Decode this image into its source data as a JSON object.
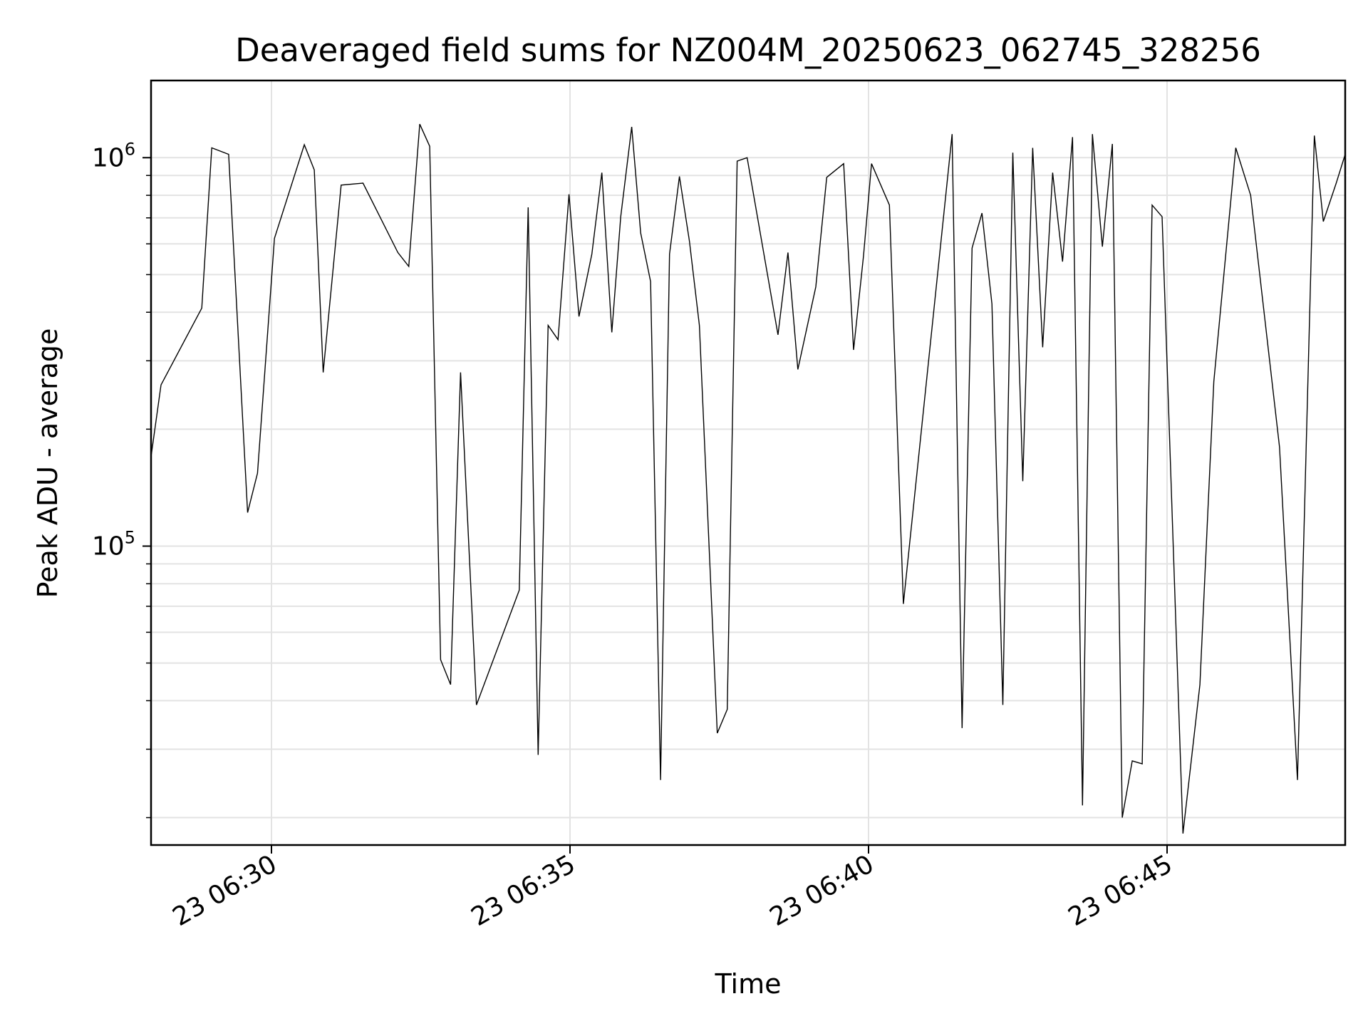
{
  "chart_data": {
    "type": "line",
    "title": "Deaveraged field sums for NZ004M_20250623_062745_328256",
    "xlabel": "Time",
    "ylabel": "Peak ADU - average",
    "yscale": "log",
    "grid": true,
    "line_color": "#000000",
    "grid_color": "#e3e3e3",
    "x_unit": "time of day on 2025-06-23 (HH:MM:SS)",
    "xlim": [
      "06:27:59",
      "06:47:59"
    ],
    "ylim": [
      17000,
      1580000
    ],
    "x_ticks": [
      {
        "value": "06:30:00",
        "label": "23 06:30"
      },
      {
        "value": "06:35:00",
        "label": "23 06:35"
      },
      {
        "value": "06:40:00",
        "label": "23 06:40"
      },
      {
        "value": "06:45:00",
        "label": "23 06:45"
      }
    ],
    "y_ticks": [
      {
        "value": 100000,
        "base": "10",
        "exp": "5"
      },
      {
        "value": 1000000,
        "base": "10",
        "exp": "6"
      }
    ],
    "series": [
      {
        "x": [
          "06:27:59",
          "06:28:09",
          "06:28:50",
          "06:29:00",
          "06:29:17",
          "06:29:36",
          "06:29:46",
          "06:30:03",
          "06:30:33",
          "06:30:43",
          "06:30:52",
          "06:31:10",
          "06:31:32",
          "06:32:07",
          "06:32:18",
          "06:32:29",
          "06:32:39",
          "06:32:50",
          "06:33:00",
          "06:33:10",
          "06:33:26",
          "06:34:09",
          "06:34:18",
          "06:34:28",
          "06:34:38",
          "06:34:48",
          "06:34:59",
          "06:35:09",
          "06:35:22",
          "06:35:32",
          "06:35:42",
          "06:35:51",
          "06:36:02",
          "06:36:11",
          "06:36:21",
          "06:36:31",
          "06:36:40",
          "06:36:50",
          "06:37:00",
          "06:37:10",
          "06:37:28",
          "06:37:38",
          "06:37:48",
          "06:37:58",
          "06:38:29",
          "06:38:39",
          "06:38:49",
          "06:39:07",
          "06:39:18",
          "06:39:35",
          "06:39:45",
          "06:39:55",
          "06:40:03",
          "06:40:21",
          "06:40:35",
          "06:41:24",
          "06:41:34",
          "06:41:44",
          "06:41:54",
          "06:42:04",
          "06:42:15",
          "06:42:25",
          "06:42:35",
          "06:42:45",
          "06:42:55",
          "06:43:05",
          "06:43:15",
          "06:43:25",
          "06:43:35",
          "06:43:45",
          "06:43:55",
          "06:44:05",
          "06:44:15",
          "06:44:25",
          "06:44:35",
          "06:44:45",
          "06:44:55",
          "06:45:16",
          "06:45:33",
          "06:45:47",
          "06:46:09",
          "06:46:24",
          "06:46:53",
          "06:47:11",
          "06:47:28",
          "06:47:37",
          "06:47:50",
          "06:47:59"
        ],
        "values": [
          170000,
          260000,
          410000,
          1060000,
          1020000,
          122000,
          154000,
          620000,
          1080000,
          930000,
          280000,
          850000,
          860000,
          570000,
          525000,
          1220000,
          1070000,
          51000,
          44000,
          280000,
          39000,
          77000,
          745000,
          29000,
          370000,
          340000,
          805000,
          390000,
          565000,
          915000,
          355000,
          705000,
          1200000,
          640000,
          480000,
          25000,
          565000,
          895000,
          610000,
          370000,
          33000,
          38000,
          980000,
          1000000,
          350000,
          570000,
          285000,
          465000,
          890000,
          965000,
          320000,
          560000,
          965000,
          755000,
          71000,
          1150000,
          34000,
          585000,
          720000,
          420000,
          39000,
          1030000,
          147000,
          1060000,
          325000,
          915000,
          540000,
          1130000,
          21500,
          1150000,
          590000,
          1085000,
          20000,
          28000,
          27500,
          755000,
          705000,
          18200,
          44000,
          265000,
          1060000,
          800000,
          180000,
          25000,
          1140000,
          685000,
          860000,
          1020000
        ]
      }
    ]
  }
}
